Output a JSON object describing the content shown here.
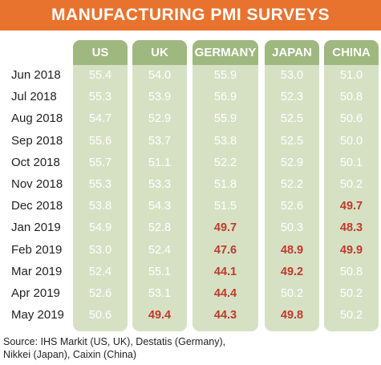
{
  "chart_data": {
    "type": "table",
    "title": "MANUFACTURING PMI SURVEYS",
    "columns": [
      "US",
      "UK",
      "GERMANY",
      "JAPAN",
      "CHINA"
    ],
    "rows": [
      {
        "label": "Jun 2018",
        "values": [
          55.4,
          54.0,
          55.9,
          53.0,
          51.0
        ]
      },
      {
        "label": "Jul 2018",
        "values": [
          55.3,
          53.9,
          56.9,
          52.3,
          50.8
        ]
      },
      {
        "label": "Aug 2018",
        "values": [
          54.7,
          52.9,
          55.9,
          52.5,
          50.6
        ]
      },
      {
        "label": "Sep 2018",
        "values": [
          55.6,
          53.7,
          53.8,
          52.5,
          50.0
        ]
      },
      {
        "label": "Oct 2018",
        "values": [
          55.7,
          51.1,
          52.2,
          52.9,
          50.1
        ]
      },
      {
        "label": "Nov 2018",
        "values": [
          55.3,
          53.3,
          51.8,
          52.2,
          50.2
        ]
      },
      {
        "label": "Dec 2018",
        "values": [
          53.8,
          54.3,
          51.5,
          52.6,
          49.7
        ]
      },
      {
        "label": "Jan 2019",
        "values": [
          54.9,
          52.8,
          49.7,
          50.3,
          48.3
        ]
      },
      {
        "label": "Feb 2019",
        "values": [
          53.0,
          52.4,
          47.6,
          48.9,
          49.9
        ]
      },
      {
        "label": "Mar 2019",
        "values": [
          52.4,
          55.1,
          44.1,
          49.2,
          50.8
        ]
      },
      {
        "label": "Apr 2019",
        "values": [
          52.6,
          53.1,
          44.4,
          50.2,
          50.2
        ]
      },
      {
        "label": "May 2019",
        "values": [
          50.6,
          49.4,
          44.3,
          49.8,
          50.2
        ]
      }
    ],
    "contraction_threshold": 50,
    "colors": {
      "title_bg": "#e8732e",
      "header_bg": "#9fb87f",
      "column_bg": "#d6e1c4",
      "below_50": "#c0392b",
      "value_text": "#ffffff"
    }
  },
  "source": [
    "Source: IHS Markit (US, UK), Destatis (Germany),",
    "Nikkei (Japan), Caixin (China)"
  ]
}
